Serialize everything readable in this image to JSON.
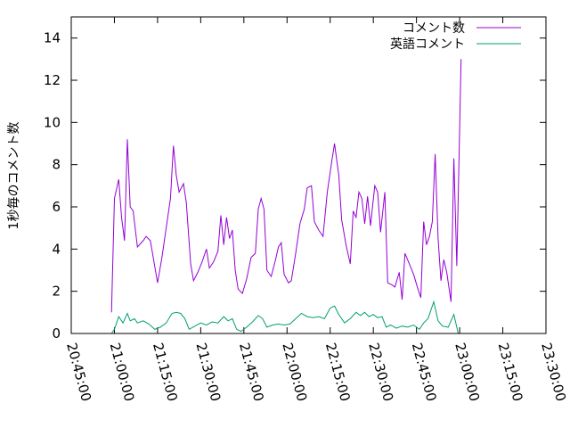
{
  "chart_data": {
    "type": "line",
    "title": "",
    "xlabel": "",
    "ylabel": "1秒毎のコメント数",
    "ylim": [
      0,
      15
    ],
    "xlim": [
      "20:45:00",
      "23:30:00"
    ],
    "y_ticks": [
      0,
      2,
      4,
      6,
      8,
      10,
      12,
      14
    ],
    "x_ticks": [
      "20:45:00",
      "21:00:00",
      "21:15:00",
      "21:30:00",
      "21:45:00",
      "22:00:00",
      "22:15:00",
      "22:30:00",
      "22:45:00",
      "23:00:00",
      "23:15:00",
      "23:30:00"
    ],
    "grid": false,
    "legend_position": "top-right",
    "series": [
      {
        "name": "コメント数",
        "color": "#9400d3",
        "points": [
          [
            "20:59:00",
            1.0
          ],
          [
            "21:00:00",
            6.4
          ],
          [
            "21:01:30",
            7.3
          ],
          [
            "21:02:30",
            5.5
          ],
          [
            "21:03:30",
            4.4
          ],
          [
            "21:04:30",
            9.2
          ],
          [
            "21:05:30",
            6.0
          ],
          [
            "21:06:30",
            5.8
          ],
          [
            "21:08:00",
            4.1
          ],
          [
            "21:10:00",
            4.4
          ],
          [
            "21:11:00",
            4.6
          ],
          [
            "21:12:30",
            4.4
          ],
          [
            "21:14:00",
            3.2
          ],
          [
            "21:15:00",
            2.4
          ],
          [
            "21:16:30",
            3.6
          ],
          [
            "21:18:00",
            5.0
          ],
          [
            "21:19:30",
            6.4
          ],
          [
            "21:20:30",
            8.9
          ],
          [
            "21:21:30",
            7.5
          ],
          [
            "21:22:30",
            6.7
          ],
          [
            "21:24:00",
            7.1
          ],
          [
            "21:25:00",
            6.2
          ],
          [
            "21:26:30",
            3.3
          ],
          [
            "21:27:30",
            2.5
          ],
          [
            "21:29:00",
            2.9
          ],
          [
            "21:30:30",
            3.4
          ],
          [
            "21:32:00",
            4.0
          ],
          [
            "21:33:00",
            3.1
          ],
          [
            "21:34:30",
            3.4
          ],
          [
            "21:36:00",
            3.9
          ],
          [
            "21:37:00",
            5.6
          ],
          [
            "21:38:00",
            4.2
          ],
          [
            "21:39:00",
            5.5
          ],
          [
            "21:40:00",
            4.5
          ],
          [
            "21:41:00",
            4.9
          ],
          [
            "21:42:00",
            3.0
          ],
          [
            "21:43:00",
            2.1
          ],
          [
            "21:44:30",
            1.9
          ],
          [
            "21:46:00",
            2.6
          ],
          [
            "21:47:30",
            3.6
          ],
          [
            "21:49:00",
            3.8
          ],
          [
            "21:50:00",
            5.9
          ],
          [
            "21:51:00",
            6.4
          ],
          [
            "21:52:00",
            5.9
          ],
          [
            "21:53:00",
            3.0
          ],
          [
            "21:54:30",
            2.7
          ],
          [
            "21:56:00",
            3.5
          ],
          [
            "21:57:00",
            4.1
          ],
          [
            "21:58:00",
            4.3
          ],
          [
            "21:59:00",
            2.8
          ],
          [
            "22:00:30",
            2.4
          ],
          [
            "22:01:30",
            2.5
          ],
          [
            "22:03:00",
            3.8
          ],
          [
            "22:04:30",
            5.2
          ],
          [
            "22:06:00",
            5.9
          ],
          [
            "22:07:00",
            6.9
          ],
          [
            "22:08:30",
            7.0
          ],
          [
            "22:09:30",
            5.3
          ],
          [
            "22:11:00",
            4.9
          ],
          [
            "22:12:30",
            4.6
          ],
          [
            "22:14:00",
            6.7
          ],
          [
            "22:15:30",
            8.1
          ],
          [
            "22:16:30",
            9.0
          ],
          [
            "22:18:00",
            7.5
          ],
          [
            "22:19:00",
            5.4
          ],
          [
            "22:20:30",
            4.2
          ],
          [
            "22:22:00",
            3.3
          ],
          [
            "22:23:00",
            5.8
          ],
          [
            "22:24:00",
            5.5
          ],
          [
            "22:25:00",
            6.7
          ],
          [
            "22:26:00",
            6.4
          ],
          [
            "22:27:00",
            5.2
          ],
          [
            "22:28:00",
            6.5
          ],
          [
            "22:29:00",
            5.1
          ],
          [
            "22:30:30",
            7.0
          ],
          [
            "22:31:30",
            6.7
          ],
          [
            "22:32:30",
            4.8
          ],
          [
            "22:34:00",
            6.7
          ],
          [
            "22:35:00",
            2.4
          ],
          [
            "22:36:30",
            2.3
          ],
          [
            "22:37:30",
            2.2
          ],
          [
            "22:39:00",
            2.9
          ],
          [
            "22:40:00",
            1.6
          ],
          [
            "22:41:00",
            3.8
          ],
          [
            "22:42:30",
            3.3
          ],
          [
            "22:44:00",
            2.8
          ],
          [
            "22:45:30",
            2.1
          ],
          [
            "22:46:30",
            1.7
          ],
          [
            "22:47:30",
            5.3
          ],
          [
            "22:48:30",
            4.2
          ],
          [
            "22:49:30",
            4.6
          ],
          [
            "22:50:30",
            5.3
          ],
          [
            "22:51:30",
            8.5
          ],
          [
            "22:52:30",
            4.5
          ],
          [
            "22:53:30",
            2.5
          ],
          [
            "22:54:30",
            3.5
          ],
          [
            "22:55:30",
            2.9
          ],
          [
            "22:57:00",
            1.5
          ],
          [
            "22:58:00",
            8.3
          ],
          [
            "22:59:00",
            3.2
          ],
          [
            "23:00:30",
            13.0
          ]
        ]
      },
      {
        "name": "英語コメント",
        "color": "#009e73",
        "points": [
          [
            "20:59:00",
            0.0
          ],
          [
            "21:00:00",
            0.2
          ],
          [
            "21:01:30",
            0.8
          ],
          [
            "21:03:00",
            0.5
          ],
          [
            "21:04:30",
            0.95
          ],
          [
            "21:05:30",
            0.6
          ],
          [
            "21:07:00",
            0.7
          ],
          [
            "21:08:00",
            0.5
          ],
          [
            "21:10:00",
            0.6
          ],
          [
            "21:12:00",
            0.45
          ],
          [
            "21:14:00",
            0.2
          ],
          [
            "21:16:00",
            0.3
          ],
          [
            "21:18:00",
            0.5
          ],
          [
            "21:20:00",
            0.95
          ],
          [
            "21:21:30",
            1.0
          ],
          [
            "21:23:00",
            0.95
          ],
          [
            "21:24:30",
            0.7
          ],
          [
            "21:26:00",
            0.2
          ],
          [
            "21:28:00",
            0.35
          ],
          [
            "21:30:00",
            0.5
          ],
          [
            "21:32:00",
            0.4
          ],
          [
            "21:34:00",
            0.55
          ],
          [
            "21:36:00",
            0.5
          ],
          [
            "21:38:00",
            0.8
          ],
          [
            "21:39:30",
            0.6
          ],
          [
            "21:41:00",
            0.7
          ],
          [
            "21:42:30",
            0.2
          ],
          [
            "21:44:00",
            0.1
          ],
          [
            "21:46:00",
            0.3
          ],
          [
            "21:48:00",
            0.55
          ],
          [
            "21:50:00",
            0.85
          ],
          [
            "21:51:30",
            0.7
          ],
          [
            "21:53:00",
            0.3
          ],
          [
            "21:55:00",
            0.4
          ],
          [
            "21:57:00",
            0.45
          ],
          [
            "21:59:00",
            0.4
          ],
          [
            "22:01:00",
            0.45
          ],
          [
            "22:03:00",
            0.7
          ],
          [
            "22:05:00",
            0.95
          ],
          [
            "22:07:00",
            0.8
          ],
          [
            "22:09:00",
            0.75
          ],
          [
            "22:11:00",
            0.8
          ],
          [
            "22:13:00",
            0.7
          ],
          [
            "22:15:00",
            1.2
          ],
          [
            "22:16:30",
            1.3
          ],
          [
            "22:18:00",
            0.9
          ],
          [
            "22:20:00",
            0.5
          ],
          [
            "22:22:00",
            0.7
          ],
          [
            "22:24:00",
            1.0
          ],
          [
            "22:25:30",
            0.85
          ],
          [
            "22:27:00",
            1.0
          ],
          [
            "22:28:30",
            0.8
          ],
          [
            "22:30:00",
            0.9
          ],
          [
            "22:31:30",
            0.75
          ],
          [
            "22:33:00",
            0.8
          ],
          [
            "22:34:30",
            0.3
          ],
          [
            "22:36:00",
            0.4
          ],
          [
            "22:38:00",
            0.25
          ],
          [
            "22:40:00",
            0.35
          ],
          [
            "22:42:00",
            0.3
          ],
          [
            "22:44:00",
            0.4
          ],
          [
            "22:46:00",
            0.2
          ],
          [
            "22:47:30",
            0.5
          ],
          [
            "22:49:00",
            0.7
          ],
          [
            "22:51:00",
            1.5
          ],
          [
            "22:52:30",
            0.6
          ],
          [
            "22:54:00",
            0.35
          ],
          [
            "22:56:00",
            0.3
          ],
          [
            "22:58:00",
            0.9
          ],
          [
            "22:59:30",
            0.0
          ]
        ]
      }
    ]
  }
}
